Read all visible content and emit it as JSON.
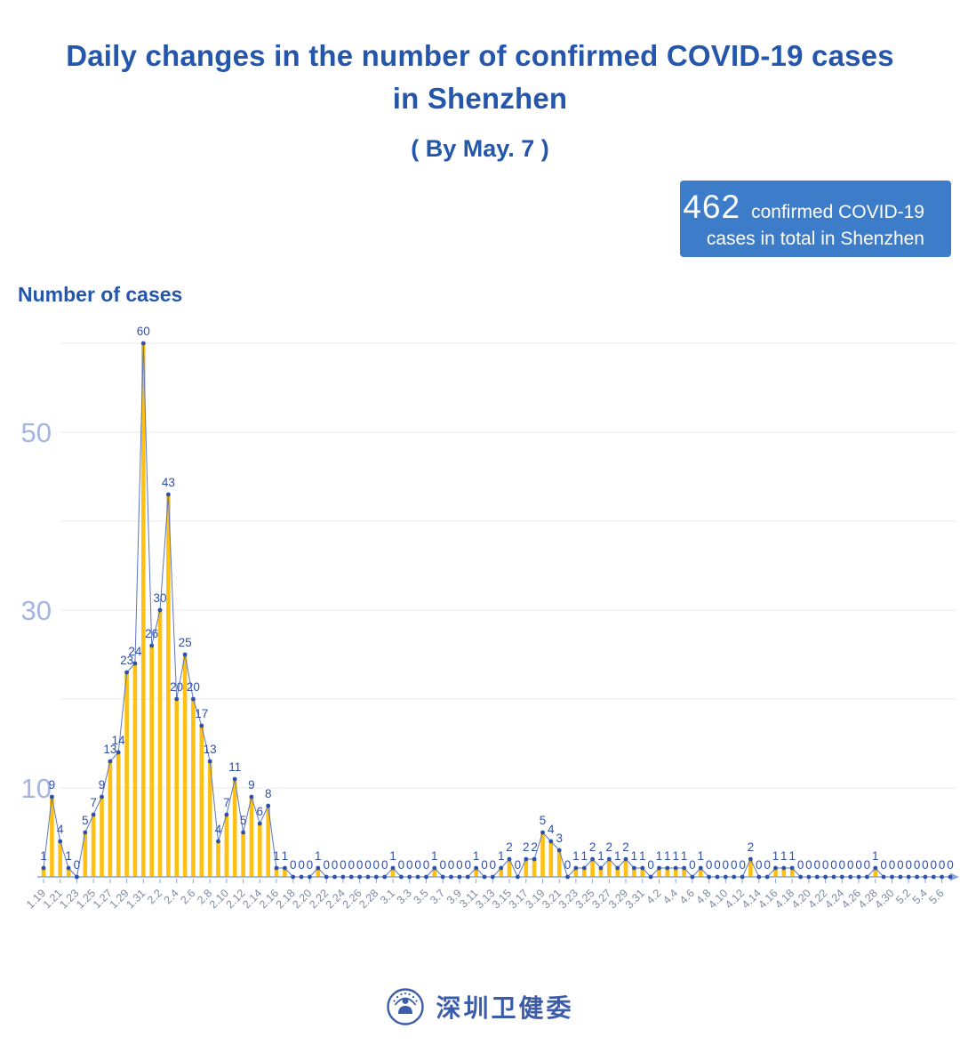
{
  "header": {
    "title_line1": "Daily changes in the number of confirmed COVID-19 cases",
    "title_line2": "in Shenzhen",
    "subtitle": "( By May. 7 )"
  },
  "badge": {
    "value": "462",
    "label_line1": "confirmed COVID-19",
    "label_line2": "cases in total in Shenzhen"
  },
  "footer": {
    "org_name": "深圳卫健委"
  },
  "colors": {
    "title": "#2456ab",
    "badge_bg": "#3d7cc9",
    "badge_text": "#ffffff",
    "bar": "#fdc013",
    "line": "#5b76c4",
    "dot": "#2d50aa",
    "value_label": "#3050a8",
    "x_label": "#7e8ba1",
    "y_label": "#a6b4e2",
    "gridline": "#e8e8eb",
    "axis": "#8ca6de",
    "logo_blue": "#3a5caa"
  },
  "chart_data": {
    "type": "bar",
    "overlay_line": true,
    "title": "Daily changes in the number of confirmed COVID-19 cases in Shenzhen ( By May. 7 )",
    "xlabel": "",
    "ylabel": "Number of cases",
    "ylim": [
      0,
      62
    ],
    "grid": true,
    "gridline_values": [
      10,
      20,
      30,
      40,
      50,
      60
    ],
    "y_tick_labels": [
      "10",
      "30",
      "50"
    ],
    "x_tick_step": 2,
    "x": [
      "1.19",
      "1.20",
      "1.21",
      "1.22",
      "1.23",
      "1.24",
      "1.25",
      "1.26",
      "1.27",
      "1.28",
      "1.29",
      "1.30",
      "1.31",
      "2.1",
      "2.2",
      "2.3",
      "2.4",
      "2.5",
      "2.6",
      "2.7",
      "2.8",
      "2.9",
      "2.10",
      "2.11",
      "2.12",
      "2.13",
      "2.14",
      "2.15",
      "2.16",
      "2.17",
      "2.18",
      "2.19",
      "2.20",
      "2.21",
      "2.22",
      "2.23",
      "2.24",
      "2.25",
      "2.26",
      "2.27",
      "2.28",
      "2.29",
      "3.1",
      "3.2",
      "3.3",
      "3.4",
      "3.5",
      "3.6",
      "3.7",
      "3.8",
      "3.9",
      "3.10",
      "3.11",
      "3.12",
      "3.13",
      "3.14",
      "3.15",
      "3.16",
      "3.17",
      "3.18",
      "3.19",
      "3.20",
      "3.21",
      "3.22",
      "3.23",
      "3.24",
      "3.25",
      "3.26",
      "3.27",
      "3.28",
      "3.29",
      "3.30",
      "3.31",
      "4.1",
      "4.2",
      "4.3",
      "4.4",
      "4.5",
      "4.6",
      "4.7",
      "4.8",
      "4.9",
      "4.10",
      "4.11",
      "4.12",
      "4.13",
      "4.14",
      "4.15",
      "4.16",
      "4.17",
      "4.18",
      "4.19",
      "4.20",
      "4.21",
      "4.22",
      "4.23",
      "4.24",
      "4.25",
      "4.26",
      "4.27",
      "4.28",
      "4.29",
      "4.30",
      "5.1",
      "5.2",
      "5.3",
      "5.4",
      "5.5",
      "5.6",
      "5.7"
    ],
    "values": [
      1,
      9,
      4,
      1,
      0,
      5,
      7,
      9,
      13,
      14,
      23,
      24,
      60,
      26,
      30,
      43,
      20,
      25,
      20,
      17,
      13,
      4,
      7,
      11,
      5,
      9,
      6,
      8,
      1,
      1,
      0,
      0,
      0,
      1,
      0,
      0,
      0,
      0,
      0,
      0,
      0,
      0,
      1,
      0,
      0,
      0,
      0,
      1,
      0,
      0,
      0,
      0,
      1,
      0,
      0,
      1,
      2,
      0,
      2,
      2,
      5,
      4,
      3,
      0,
      1,
      1,
      2,
      1,
      2,
      1,
      2,
      1,
      1,
      0,
      1,
      1,
      1,
      1,
      0,
      1,
      0,
      0,
      0,
      0,
      0,
      2,
      0,
      0,
      1,
      1,
      1,
      0,
      0,
      0,
      0,
      0,
      0,
      0,
      0,
      0,
      1,
      0,
      0,
      0,
      0,
      0,
      0,
      0,
      0,
      0
    ],
    "total": 462
  }
}
